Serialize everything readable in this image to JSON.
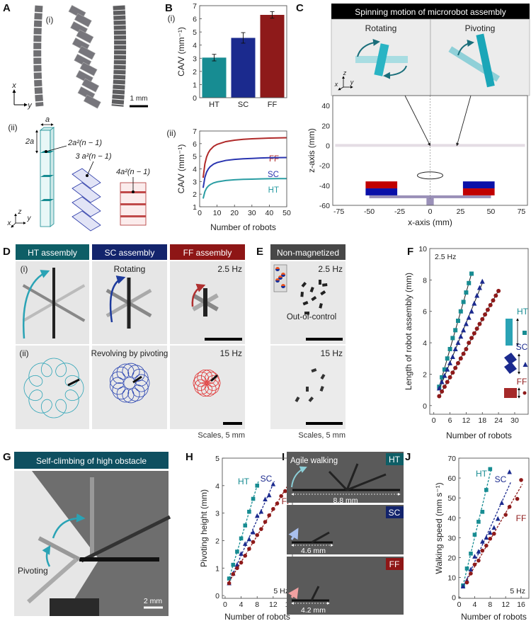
{
  "figure": {
    "panel_labels": {
      "A": "A",
      "B": "B",
      "C": "C",
      "D": "D",
      "E": "E",
      "F": "F",
      "G": "G",
      "H": "H",
      "I": "I",
      "J": "J"
    },
    "A": {
      "sub_i": "(i)",
      "sub_ii": "(ii)",
      "scale": "1 mm",
      "axis_x": "x",
      "axis_y": "y",
      "axis_z": "z",
      "dim_a": "a",
      "dim_2a": "2a",
      "eq_ht": "2a²(n − 1)",
      "eq_sc": "3 a²(n − 1)",
      "eq_ff": "4a²(n − 1)"
    },
    "B": {
      "sub_i": "(i)",
      "sub_ii": "(ii)"
    },
    "C": {
      "title": "Spinning motion of microrobot assembly",
      "rotating": "Rotating",
      "pivoting": "Pivoting",
      "axis_x": "x",
      "axis_y": "y",
      "axis_z": "z"
    },
    "D": {
      "headers": [
        "HT assembly",
        "SC assembly",
        "FF assembly"
      ],
      "sub_i": "(i)",
      "sub_ii": "(ii)",
      "rotating": "Rotating",
      "revolving": "Revolving by pivoting",
      "freq_low": "2.5 Hz",
      "freq_high": "15 Hz",
      "scales": "Scales, 5 mm"
    },
    "E": {
      "header": "Non-magnetized",
      "freq_low": "2.5 Hz",
      "freq_high": "15 Hz",
      "out_of_control": "Out-of-control",
      "scales": "Scales, 5 mm"
    },
    "G": {
      "header": "Self-climbing of high obstacle",
      "pivoting": "Pivoting",
      "scale": "2 mm"
    },
    "I": {
      "agile": "Agile walking",
      "tags": [
        "HT",
        "SC",
        "FF"
      ],
      "dims": [
        "8.8 mm",
        "4.6 mm",
        "4.2 mm"
      ]
    }
  },
  "colors": {
    "HT": "#178c92",
    "SC": "#1b2a8e",
    "FF": "#8e1a1a",
    "HT_header": "#0e5e66",
    "SC_header": "#13246c",
    "FF_header": "#8e1616",
    "E_header": "#474747",
    "G_header": "#0e4f60"
  },
  "chart_data": [
    {
      "type": "bar",
      "categories": [
        "HT",
        "SC",
        "FF"
      ],
      "values": [
        3.05,
        4.55,
        6.3
      ],
      "errors": [
        0.25,
        0.4,
        0.25
      ],
      "ylabel": "CA/V (mm⁻¹)",
      "ylim": [
        0,
        7
      ],
      "yticks": [
        0,
        1,
        2,
        3,
        4,
        5,
        6,
        7
      ]
    },
    {
      "type": "line",
      "xlabel": "Number of robots",
      "ylabel": "CA/V (mm⁻¹)",
      "xlim": [
        0,
        50
      ],
      "ylim": [
        1,
        7
      ],
      "xticks": [
        0,
        10,
        20,
        30,
        40,
        50
      ],
      "yticks": [
        1,
        2,
        3,
        4,
        5,
        6,
        7
      ],
      "x": [
        2,
        3,
        4,
        5,
        6,
        8,
        10,
        15,
        20,
        25,
        30,
        35,
        40,
        45,
        50
      ],
      "series": [
        {
          "name": "FF",
          "values": [
            3.3,
            4.4,
            4.95,
            5.28,
            5.5,
            5.78,
            5.94,
            6.16,
            6.27,
            6.34,
            6.38,
            6.41,
            6.44,
            6.45,
            6.47
          ]
        },
        {
          "name": "SC",
          "values": [
            2.5,
            3.33,
            3.75,
            4.0,
            4.17,
            4.38,
            4.5,
            4.67,
            4.75,
            4.8,
            4.83,
            4.86,
            4.88,
            4.89,
            4.9
          ]
        },
        {
          "name": "HT",
          "values": [
            1.65,
            2.2,
            2.48,
            2.64,
            2.75,
            2.89,
            2.97,
            3.08,
            3.14,
            3.17,
            3.19,
            3.21,
            3.22,
            3.23,
            3.23
          ]
        }
      ]
    },
    {
      "type": "streamline",
      "xlabel": "x-axis (mm)",
      "ylabel": "z-axis (mm)",
      "xlim": [
        -80,
        80
      ],
      "ylim": [
        -60,
        50
      ],
      "xticks": [
        -75,
        -50,
        -25,
        0,
        25,
        50,
        75
      ],
      "yticks": [
        -60,
        -40,
        -20,
        0,
        20,
        40
      ]
    },
    {
      "type": "scatter",
      "xlabel": "Number of robots",
      "ylabel": "Length of robot assembly (mm)",
      "annotation": "2.5 Hz",
      "xlim": [
        -1.5,
        35
      ],
      "ylim": [
        -0.55,
        10
      ],
      "xticks": [
        0,
        6,
        12,
        18,
        24,
        30
      ],
      "yticks": [
        0,
        2,
        4,
        6,
        8,
        10
      ],
      "series": [
        {
          "name": "HT",
          "marker": "square",
          "x": [
            2,
            3,
            4,
            5,
            6,
            7,
            8,
            9,
            10,
            11,
            12,
            13,
            14
          ],
          "values": [
            1.2,
            1.8,
            2.3,
            3.0,
            3.6,
            4.3,
            4.8,
            5.4,
            6.0,
            6.6,
            7.2,
            7.8,
            8.4
          ]
        },
        {
          "name": "SC",
          "marker": "triangle",
          "x": [
            2,
            3,
            4,
            5,
            6,
            7,
            8,
            9,
            10,
            11,
            12,
            13,
            14,
            15,
            16,
            17,
            18
          ],
          "values": [
            1.1,
            1.5,
            1.9,
            2.3,
            2.7,
            3.1,
            3.6,
            4.0,
            4.4,
            4.8,
            5.2,
            5.6,
            6.0,
            6.5,
            7.0,
            7.5,
            7.9
          ]
        },
        {
          "name": "FF",
          "marker": "circle",
          "x": [
            2,
            3,
            4,
            5,
            6,
            7,
            8,
            9,
            10,
            11,
            12,
            13,
            14,
            15,
            16,
            17,
            18,
            19,
            20,
            21,
            22,
            23,
            24
          ],
          "values": [
            0.6,
            0.9,
            1.2,
            1.5,
            1.8,
            2.1,
            2.4,
            2.7,
            3.0,
            3.3,
            3.6,
            4.0,
            4.3,
            4.6,
            4.9,
            5.2,
            5.5,
            5.8,
            6.1,
            6.4,
            6.7,
            7.0,
            7.3
          ]
        }
      ]
    },
    {
      "type": "scatter",
      "xlabel": "Number of robots",
      "ylabel": "Pivoting height (mm)",
      "annotation": "5 Hz",
      "xlim": [
        -0.7,
        16.8
      ],
      "ylim": [
        -0.1,
        5
      ],
      "xticks": [
        0,
        4,
        8,
        12,
        16
      ],
      "yticks": [
        0,
        1,
        2,
        3,
        4,
        5
      ],
      "series": [
        {
          "name": "HT",
          "marker": "square",
          "x": [
            1,
            2,
            3,
            4,
            5,
            6,
            7,
            8
          ],
          "values": [
            0.62,
            1.12,
            1.6,
            2.08,
            2.55,
            3.05,
            3.52,
            4.0
          ]
        },
        {
          "name": "SC",
          "marker": "triangle",
          "x": [
            1,
            2,
            3,
            4,
            5,
            6,
            7,
            8,
            9,
            10,
            11,
            12
          ],
          "values": [
            0.45,
            0.8,
            1.12,
            1.52,
            1.88,
            2.05,
            2.3,
            2.9,
            3.05,
            3.5,
            3.65,
            4.05
          ]
        },
        {
          "name": "FF",
          "marker": "circle",
          "x": [
            1,
            2,
            3,
            4,
            5,
            6,
            7,
            8,
            9,
            10,
            11,
            12,
            13,
            14,
            15,
            16
          ],
          "values": [
            0.45,
            0.78,
            1.0,
            1.2,
            1.45,
            1.7,
            1.95,
            2.2,
            2.42,
            2.68,
            2.92,
            3.15,
            3.35,
            3.62,
            3.8,
            4.1
          ]
        }
      ]
    },
    {
      "type": "scatter",
      "xlabel": "Number of robots",
      "ylabel": "Walking speed (mm s⁻¹)",
      "annotation": "5 Hz",
      "xlim": [
        -0.1,
        18
      ],
      "ylim": [
        -0.5,
        70
      ],
      "xticks": [
        0,
        4,
        8,
        12,
        16
      ],
      "yticks": [
        0,
        10,
        20,
        30,
        40,
        50,
        60,
        70
      ],
      "series": [
        {
          "name": "HT",
          "marker": "square",
          "x": [
            1,
            2,
            3,
            4,
            5,
            6,
            7,
            8
          ],
          "values": [
            6,
            14.5,
            22,
            31.5,
            38,
            43,
            54,
            64.5
          ]
        },
        {
          "name": "SC",
          "marker": "triangle",
          "x": [
            1,
            2,
            3,
            4,
            5,
            6,
            7,
            8,
            9,
            10,
            11,
            13
          ],
          "values": [
            5.5,
            8.5,
            14,
            20.5,
            23,
            28,
            30,
            32.5,
            35,
            39.5,
            47.5,
            63
          ]
        },
        {
          "name": "FF",
          "marker": "circle",
          "x": [
            2,
            3,
            4,
            5,
            6,
            7,
            8,
            9,
            12,
            13,
            15,
            16
          ],
          "values": [
            7.5,
            12,
            16.5,
            18.5,
            23.5,
            26,
            29.5,
            32,
            41.5,
            45.5,
            49.5,
            59
          ]
        }
      ]
    }
  ]
}
